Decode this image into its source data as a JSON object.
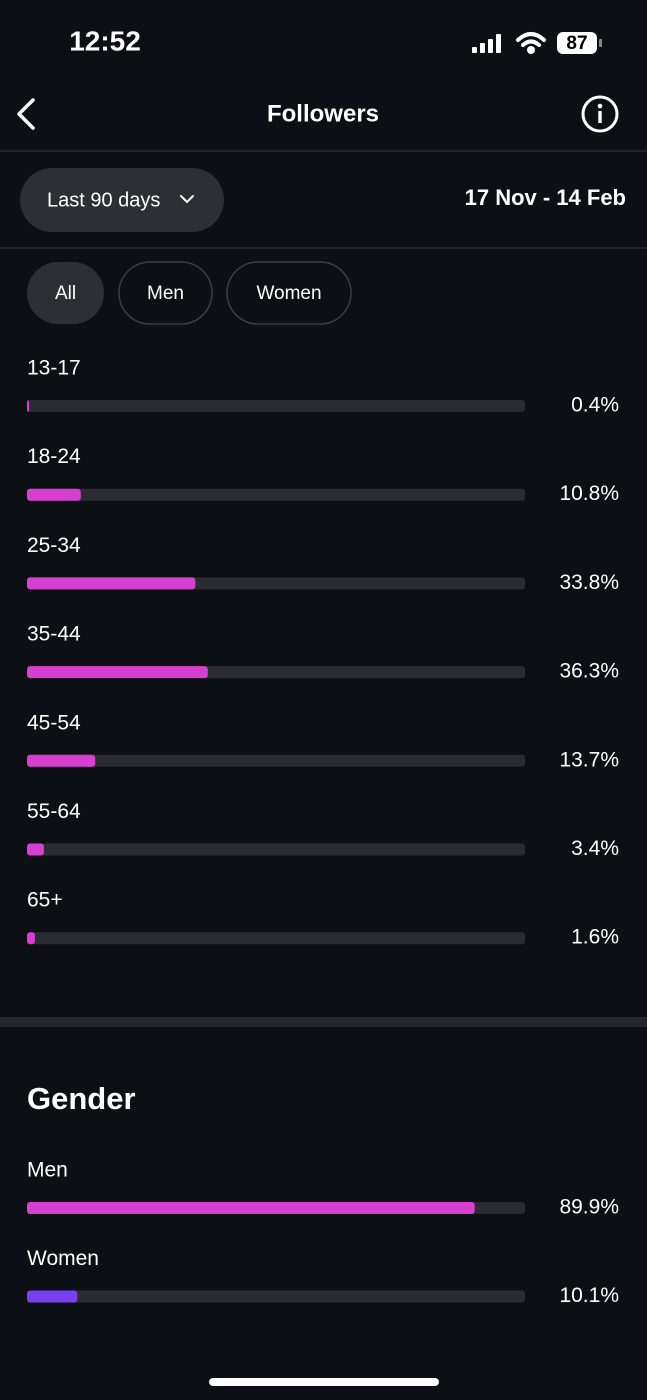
{
  "status_bar": {
    "time": "12:52",
    "battery": "87"
  },
  "header": {
    "title": "Followers"
  },
  "filter": {
    "range": "Last 90 days",
    "dates": "17 Nov - 14 Feb"
  },
  "tabs": [
    "All",
    "Men",
    "Women"
  ],
  "age": {
    "categories": [
      "13-17",
      "18-24",
      "25-34",
      "35-44",
      "45-54",
      "55-64",
      "65+"
    ],
    "values": [
      0.4,
      10.8,
      33.8,
      36.3,
      13.7,
      3.4,
      1.6
    ],
    "value_labels": [
      "0.4%",
      "10.8%",
      "33.8%",
      "36.3%",
      "13.7%",
      "3.4%",
      "1.6%"
    ],
    "color": "#d63fcf",
    "xlim": [
      0,
      100
    ]
  },
  "gender": {
    "title": "Gender",
    "categories": [
      "Men",
      "Women"
    ],
    "values": [
      89.9,
      10.1
    ],
    "value_labels": [
      "89.9%",
      "10.1%"
    ],
    "colors": [
      "#d63fcf",
      "#7b3ff2"
    ],
    "xlim": [
      0,
      100
    ]
  }
}
